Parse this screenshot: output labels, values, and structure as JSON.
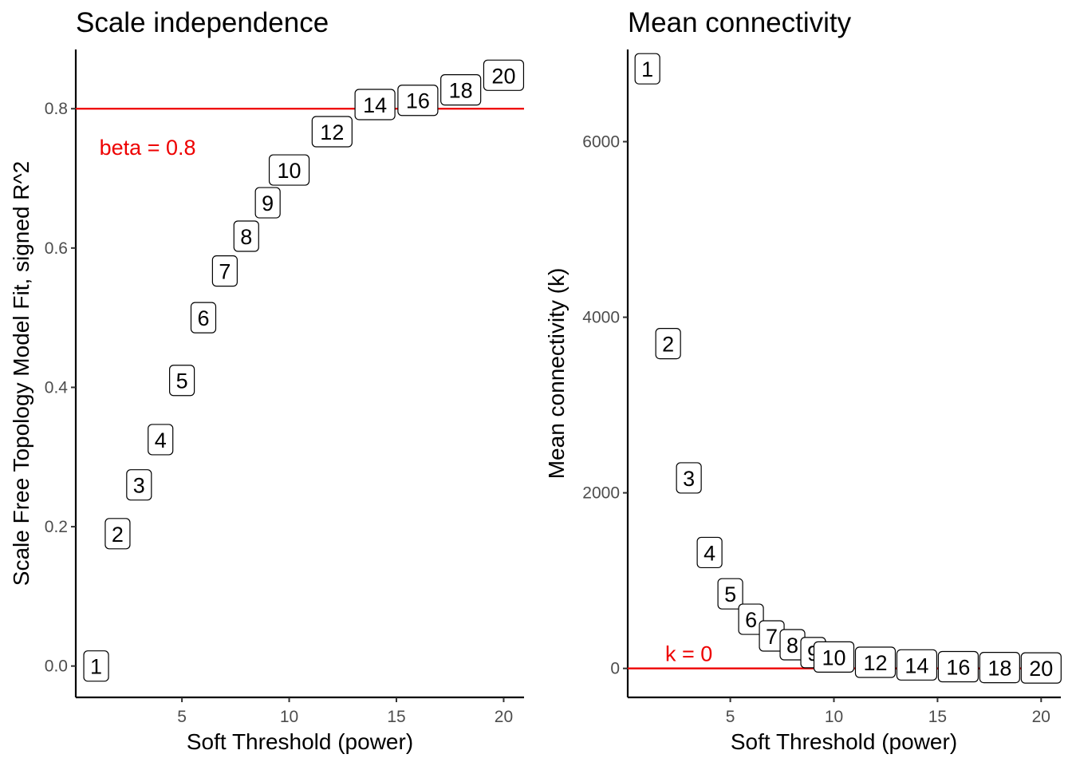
{
  "chart_data": [
    {
      "type": "scatter",
      "title": "Scale independence",
      "xlabel": "Soft Threshold (power)",
      "ylabel": "Scale Free Topology Model Fit, signed R^2",
      "xlim": [
        0.05,
        20.95
      ],
      "ylim": [
        -0.045,
        0.885
      ],
      "xticks": [
        5,
        10,
        15,
        20
      ],
      "yticks": [
        0.0,
        0.2,
        0.4,
        0.6,
        0.8
      ],
      "ytick_labels": [
        "0.0",
        "0.2",
        "0.4",
        "0.6",
        "0.8"
      ],
      "grid": false,
      "x": [
        1,
        2,
        3,
        4,
        5,
        6,
        7,
        8,
        9,
        10,
        12,
        14,
        16,
        18,
        20
      ],
      "y": [
        0.0,
        0.19,
        0.26,
        0.325,
        0.41,
        0.5,
        0.567,
        0.617,
        0.665,
        0.712,
        0.767,
        0.806,
        0.812,
        0.827,
        0.848
      ],
      "labels": [
        "1",
        "2",
        "3",
        "4",
        "5",
        "6",
        "7",
        "8",
        "9",
        "10",
        "12",
        "14",
        "16",
        "18",
        "20"
      ],
      "reference_line": {
        "y": 0.8,
        "label": "beta = 0.8",
        "color": "#ee0000"
      },
      "reference_label_pos": {
        "x": 3.4,
        "y": 0.745
      }
    },
    {
      "type": "scatter",
      "title": "Mean connectivity",
      "xlabel": "Soft Threshold (power)",
      "ylabel": "Mean connectivity (k)",
      "xlim": [
        0.05,
        20.95
      ],
      "ylim": [
        -330,
        7050
      ],
      "xticks": [
        5,
        10,
        15,
        20
      ],
      "yticks": [
        0,
        2000,
        4000,
        6000
      ],
      "ytick_labels": [
        "0",
        "2000",
        "4000",
        "6000"
      ],
      "grid": false,
      "x": [
        1,
        2,
        3,
        4,
        5,
        6,
        7,
        8,
        9,
        10,
        12,
        14,
        16,
        18,
        20
      ],
      "y": [
        6830,
        3700,
        2170,
        1320,
        850,
        560,
        370,
        270,
        180,
        130,
        70,
        40,
        20,
        10,
        5
      ],
      "labels": [
        "1",
        "2",
        "3",
        "4",
        "5",
        "6",
        "7",
        "8",
        "9",
        "10",
        "12",
        "14",
        "16",
        "18",
        "20"
      ],
      "reference_line": {
        "y": 0,
        "label": "k = 0",
        "color": "#ee0000"
      },
      "reference_label_pos": {
        "x": 3.0,
        "y": 175
      }
    }
  ]
}
